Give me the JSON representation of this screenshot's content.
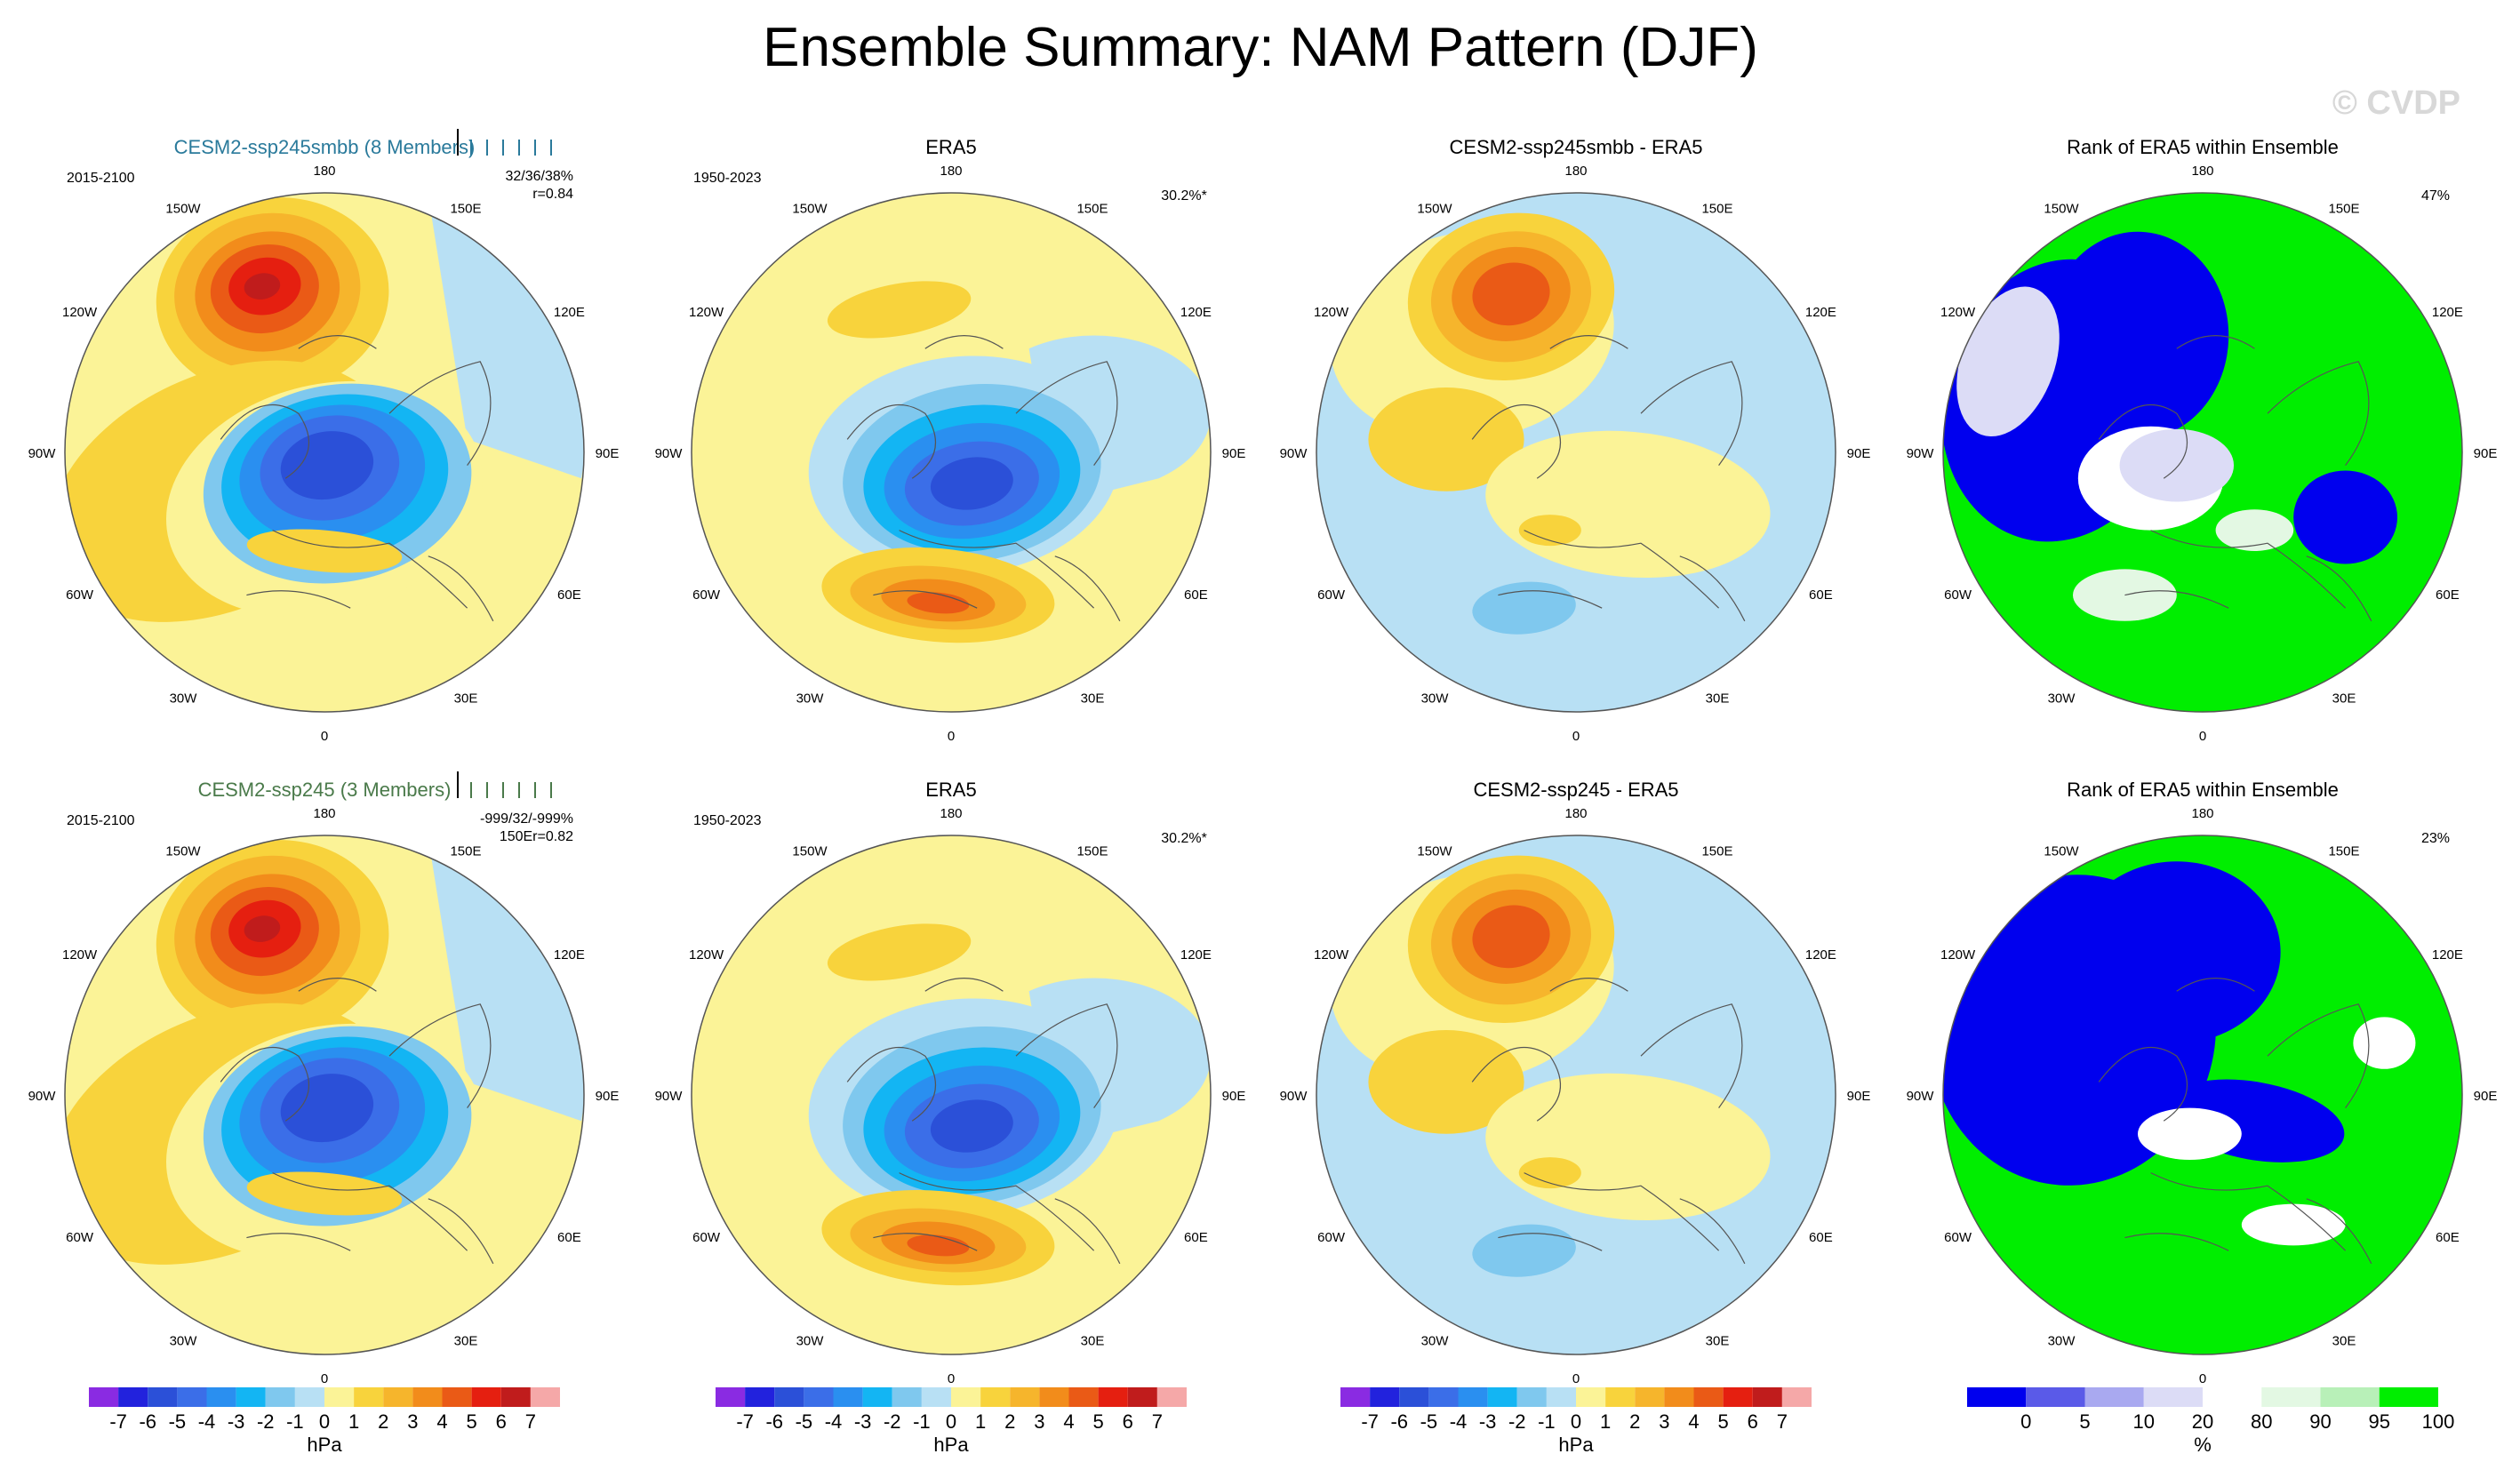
{
  "page": {
    "title": "Ensemble Summary: NAM Pattern (DJF)",
    "watermark": "© CVDP"
  },
  "chart_data": [
    {
      "type": "heatmap",
      "title": "CESM2-ssp245smbb (8 Members)",
      "title_color": "#2a7a9b",
      "period": "2015-2100",
      "stats_line1": "32/36/38%",
      "stats_line2": "r=0.84",
      "stats_prefix": "",
      "pct": "",
      "field": "ens_mean",
      "colorbar": "hpa"
    },
    {
      "type": "heatmap",
      "title": "ERA5",
      "title_color": "#000000",
      "period": "1950-2023",
      "stats_line1": "",
      "stats_line2": "",
      "stats_prefix": "",
      "pct": "30.2%*",
      "field": "obs",
      "colorbar": "hpa"
    },
    {
      "type": "heatmap",
      "title": "CESM2-ssp245smbb - ERA5",
      "title_color": "#000000",
      "period": "",
      "stats_line1": "",
      "stats_line2": "",
      "stats_prefix": "",
      "pct": "",
      "field": "diff",
      "colorbar": "hpa"
    },
    {
      "type": "heatmap",
      "title": "Rank of ERA5 within Ensemble",
      "title_color": "#000000",
      "period": "",
      "stats_line1": "",
      "stats_line2": "",
      "stats_prefix": "",
      "pct": "47%",
      "field": "rank1",
      "colorbar": "rank"
    },
    {
      "type": "heatmap",
      "title": "CESM2-ssp245 (3 Members)",
      "title_color": "#4a7a4a",
      "period": "2015-2100",
      "stats_line1": "-999/32/-999%",
      "stats_line2": "r=0.82",
      "stats_prefix": "150E",
      "pct": "",
      "field": "ens_mean2",
      "colorbar": "hpa"
    },
    {
      "type": "heatmap",
      "title": "ERA5",
      "title_color": "#000000",
      "period": "1950-2023",
      "stats_line1": "",
      "stats_line2": "",
      "stats_prefix": "",
      "pct": "30.2%*",
      "field": "obs",
      "colorbar": "hpa"
    },
    {
      "type": "heatmap",
      "title": "CESM2-ssp245 - ERA5",
      "title_color": "#000000",
      "period": "",
      "stats_line1": "",
      "stats_line2": "",
      "stats_prefix": "",
      "pct": "",
      "field": "diff2",
      "colorbar": "hpa"
    },
    {
      "type": "heatmap",
      "title": "Rank of ERA5 within Ensemble",
      "title_color": "#000000",
      "period": "",
      "stats_line1": "",
      "stats_line2": "",
      "stats_prefix": "",
      "pct": "23%",
      "field": "rank2",
      "colorbar": "rank"
    }
  ],
  "longitude_labels": [
    "180",
    "150E",
    "120E",
    "90E",
    "60E",
    "30E",
    "0",
    "30W",
    "60W",
    "90W",
    "120W",
    "150W"
  ],
  "colorbars": {
    "hpa": {
      "unit": "hPa",
      "tick_labels": [
        "-7",
        "-6",
        "-5",
        "-4",
        "-3",
        "-2",
        "-1",
        "0",
        "1",
        "2",
        "3",
        "4",
        "5",
        "6",
        "7"
      ],
      "colors": [
        "#8a2be2",
        "#2222dd",
        "#2b50d8",
        "#3b6ee8",
        "#2a8ff0",
        "#13b5f3",
        "#7fc8ee",
        "#b8e0f4",
        "#fbf397",
        "#f8d33c",
        "#f6b52c",
        "#f28c1b",
        "#ea5a16",
        "#e51f10",
        "#c01c1c",
        "#f5a8a8"
      ]
    },
    "rank": {
      "unit": "%",
      "tick_labels": [
        "0",
        "5",
        "10",
        "20",
        "80",
        "90",
        "95",
        "100"
      ],
      "colors": [
        "#0000ee",
        "#5a5ae8",
        "#a9a9f0",
        "#dcdcf6",
        "#ffffff",
        "#e3f8e3",
        "#b8f0b8",
        "#00ee00"
      ]
    }
  },
  "colors": {
    "map_border": "#555555",
    "coast": "#555555",
    "ens_bar": "#2a7a9b"
  }
}
